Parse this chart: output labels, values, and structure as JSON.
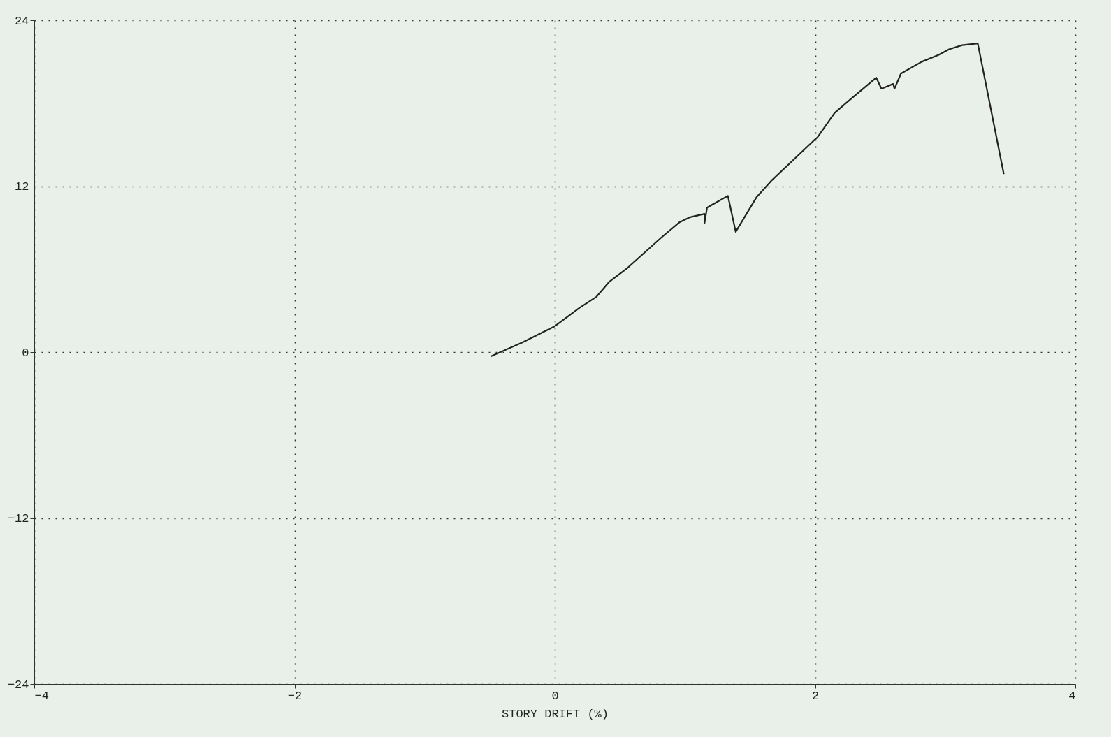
{
  "chart_data": {
    "type": "line",
    "xlabel": "STORY DRIFT (%)",
    "xlim": [
      -4,
      4
    ],
    "xticks": [
      -4,
      -2,
      0,
      2,
      4
    ],
    "ylim": [
      -24,
      24
    ],
    "yticks": [
      -24,
      -12,
      0,
      12,
      24
    ],
    "grid": true,
    "line_style": "solid",
    "marker": "none",
    "series": [
      {
        "color": "#222222",
        "x": [
          -0.49,
          -0.25,
          0,
          0.19,
          0.32,
          0.42,
          0.56,
          0.82,
          0.96,
          1.04,
          1.15,
          1.15,
          1.17,
          1.33,
          1.39,
          1.55,
          1.67,
          1.99,
          2.02,
          2.15,
          2.28,
          2.47,
          2.51,
          2.6,
          2.61,
          2.66,
          2.82,
          2.95,
          3.03,
          3.13,
          3.25,
          3.45
        ],
        "values": [
          -0.3,
          0.7,
          1.87,
          3.2,
          4.0,
          5.1,
          6.1,
          8.3,
          9.4,
          9.76,
          10.0,
          9.3,
          10.45,
          11.3,
          8.7,
          11.2,
          12.45,
          15.3,
          15.55,
          17.3,
          18.35,
          19.85,
          19.05,
          19.4,
          19.05,
          20.15,
          21.0,
          21.5,
          21.9,
          22.2,
          22.33,
          12.87
        ]
      }
    ]
  }
}
